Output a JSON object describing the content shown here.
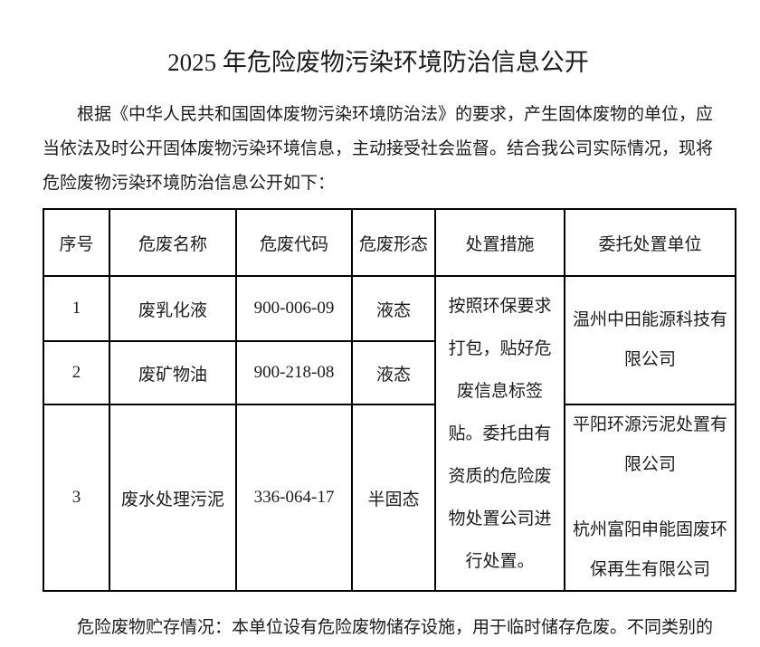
{
  "colors": {
    "text": "#1c1c1c",
    "border": "#000000",
    "background": "#ffffff"
  },
  "document": {
    "title": "2025 年危险废物污染环境防治信息公开",
    "intro_lines": [
      "根据《中华人民共和国固体废物污染环境防治法》的要求，产生固体废物的单位，应",
      "当依法及时公开固体废物污染环境信息，主动接受社会监督。结合我公司实际情况，现将",
      "危险废物污染环境防治信息公开如下："
    ],
    "footer": "危险废物贮存情况：本单位设有危险废物储存设施，用于临时储存危废。不同类别的"
  },
  "table": {
    "headers": [
      "序号",
      "危废名称",
      "危废代码",
      "危废形态",
      "处置措施",
      "委托处置单位"
    ],
    "rows": [
      {
        "no": "1",
        "name": "废乳化液",
        "code": "900-006-09",
        "form": "液态"
      },
      {
        "no": "2",
        "name": "废矿物油",
        "code": "900-218-08",
        "form": "液态"
      },
      {
        "no": "3",
        "name": "废水处理污泥",
        "code": "336-064-17",
        "form": "半固态"
      }
    ],
    "disposal_measure": "按照环保要求打包，贴好危废信息标签贴。委托由有资质的危险废物处置公司进行处置。",
    "entrusted_units": {
      "rows_1_2": "温州中田能源科技有限公司",
      "row_3_a": "平阳环源污泥处置有限公司",
      "row_3_b": "杭州富阳申能固废环保再生有限公司"
    }
  }
}
